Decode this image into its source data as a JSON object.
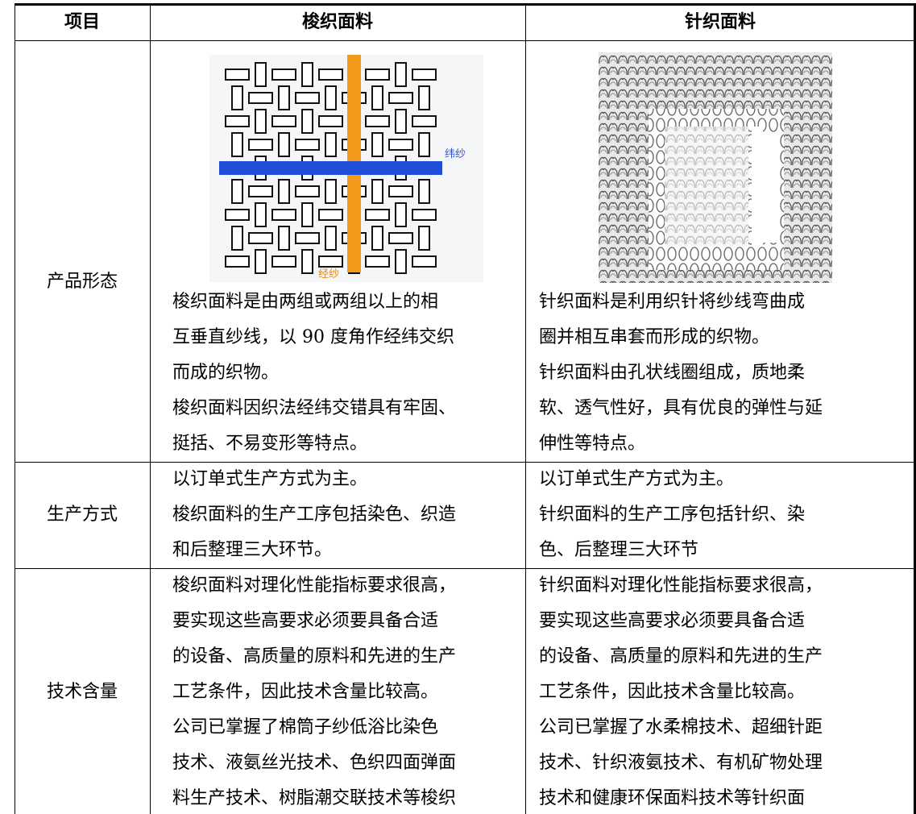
{
  "table": {
    "header": [
      "项目",
      "梭织面料",
      "针织面料"
    ],
    "rows": [
      {
        "label": "产品形态",
        "cells": [
          {
            "image_labels": [
              "纬纱",
              "经纱"
            ],
            "lines": [
              "梭织面料是由两组或两组以上的相",
              "互垂直纱线，以 90 度角作经纬交织",
              "而成的织物。",
              "梭织面料因织法经纬交错具有牢固、",
              "挺括、不易变形等特点。"
            ]
          },
          {
            "lines": [
              "针织面料是利用织针将纱线弯曲成",
              "圈并相互串套而形成的织物。",
              "针织面料由孔状线圈组成，质地柔",
              "软、透气性好，具有优良的弹性与延",
              "伸性等特点。"
            ]
          }
        ]
      },
      {
        "label": "生产方式",
        "cells": [
          {
            "lines": [
              "以订单式生产方式为主。",
              "梭织面料的生产工序包括染色、织造",
              "和后整理三大环节。"
            ]
          },
          {
            "lines": [
              "以订单式生产方式为主。",
              "针织面料的生产工序包括针织、染",
              "色、后整理三大环节"
            ]
          }
        ]
      },
      {
        "label": "技术含量",
        "cells": [
          {
            "lines": [
              "梭织面料对理化性能指标要求很高，",
              "要实现这些高要求必须要具备合适",
              "的设备、高质量的原料和先进的生产",
              "工艺条件，因此技术含量比较高。",
              "公司已掌握了棉筒子纱低浴比染色",
              "技术、液氨丝光技术、色织四面弹面",
              "料生产技术、树脂潮交联技术等梭织"
            ]
          },
          {
            "lines": [
              "针织面料对理化性能指标要求很高，",
              "要实现这些高要求必须要具备合适",
              "的设备、高质量的原料和先进的生产",
              "工艺条件，因此技术含量比较高。",
              "公司已掌握了水柔棉技术、超细针距",
              "技术、针织液氨技术、有机矿物处理",
              "技术和健康环保面料技术等针织面"
            ]
          }
        ]
      }
    ]
  }
}
